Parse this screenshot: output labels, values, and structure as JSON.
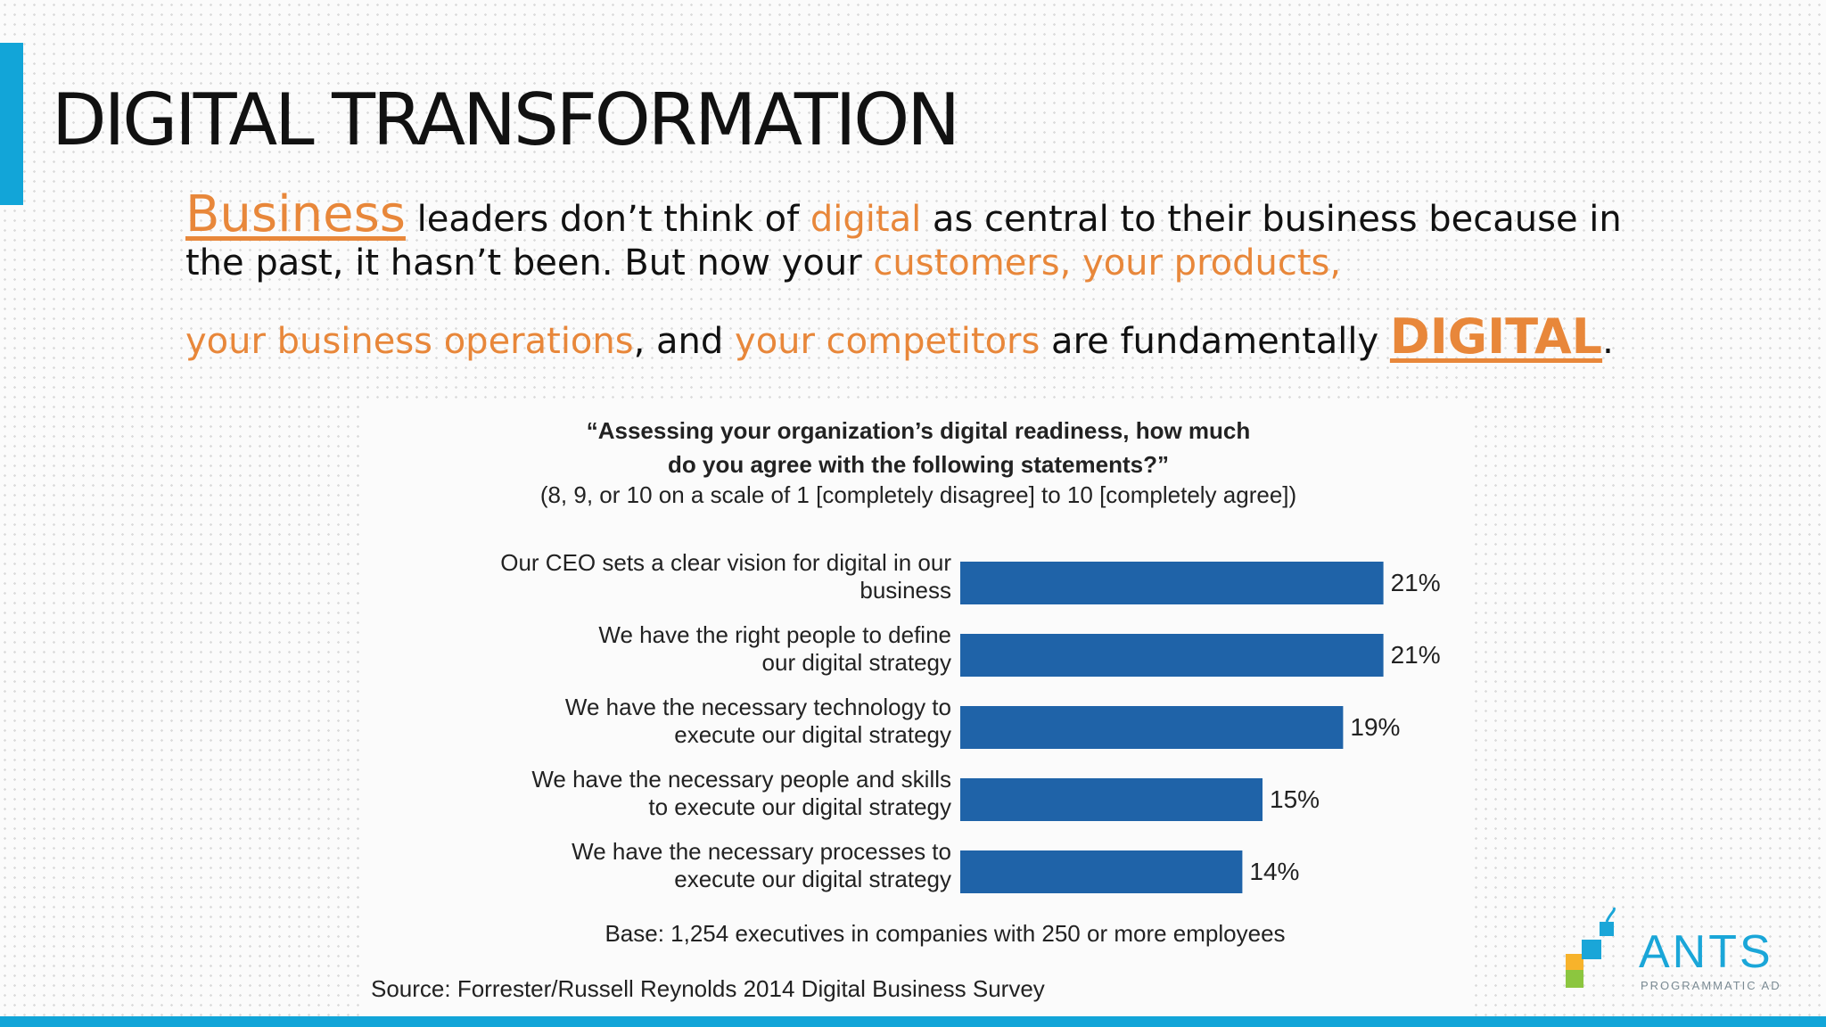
{
  "slide": {
    "title": "DIGITAL TRANSFORMATION",
    "intro": {
      "w1": "Business",
      "t1": " leaders don’t think of ",
      "w2": "digital",
      "t2": " as central to their business because in",
      "t3": "the past, it hasn’t been. But now your ",
      "w3": "customers, your products,",
      "w4": "your business operations",
      "t4": ", and ",
      "w5": "your competitors",
      "t5": " are fundamentally ",
      "w6": "DIGITAL",
      "t6": "."
    }
  },
  "chart_data": {
    "type": "bar",
    "orientation": "horizontal",
    "title_line1": "“Assessing your organization’s digital readiness, how much",
    "title_line2": "do you agree with the following statements?”",
    "subtitle": "(8, 9, or 10 on a scale of 1 [completely disagree] to 10 [completely agree])",
    "categories": [
      [
        "Our CEO sets a clear vision for digital in our",
        "business"
      ],
      [
        "We have the right people to define",
        "our digital strategy"
      ],
      [
        "We have the necessary technology to",
        "execute our digital strategy"
      ],
      [
        "We have the necessary people and skills",
        "to execute our digital strategy"
      ],
      [
        "We have the necessary processes to",
        "execute our digital strategy"
      ]
    ],
    "values": [
      21,
      21,
      19,
      15,
      14
    ],
    "value_labels": [
      "21%",
      "21%",
      "19%",
      "15%",
      "14%"
    ],
    "bar_color": "#1f63a8",
    "base_note": "Base: 1,254 executives in companies with 250 or more employees",
    "source": "Source: Forrester/Russell Reynolds 2014 Digital Business Survey"
  },
  "logo": {
    "name": "ANTS",
    "tagline": "PROGRAMMATIC AD",
    "colors": [
      "#1aa6d8",
      "#8cc63f",
      "#f7b32b"
    ]
  },
  "theme": {
    "accent": "#12a5d8",
    "highlight": "#e8873a"
  }
}
